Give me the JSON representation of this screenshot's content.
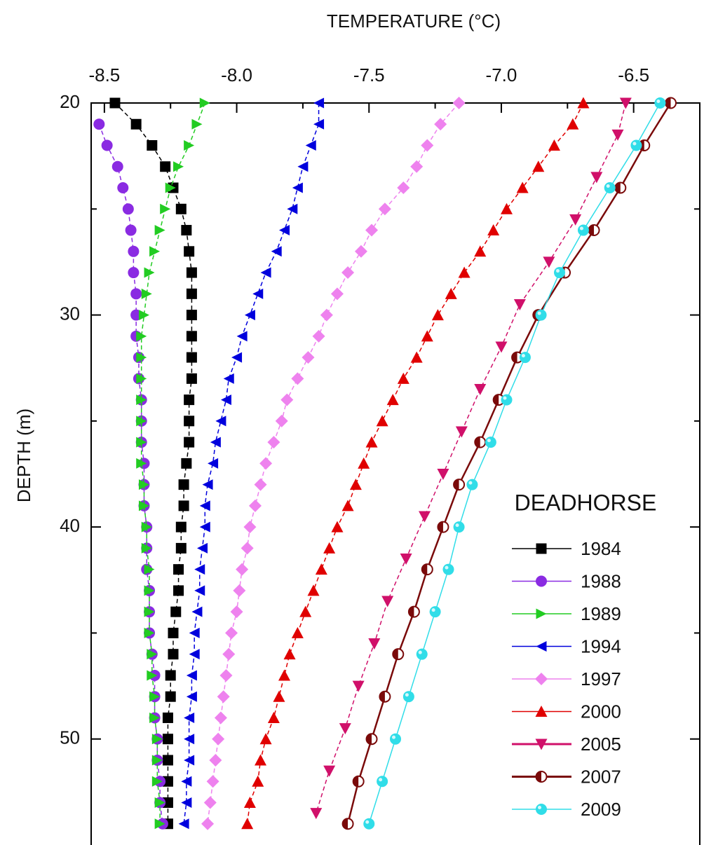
{
  "chart_data": {
    "type": "line",
    "title": "TEMPERATURE (°C)",
    "y_label": "DEPTH (m)",
    "legend_title": "DEADHORSE",
    "xlim": [
      -8.55,
      -6.25
    ],
    "ylim": [
      20,
      55
    ],
    "y_inverted": true,
    "x_axis_position": "top",
    "xticks": [
      -8.5,
      {
        "value": -8,
        "label": "-8.0"
      },
      -7.5,
      {
        "value": -7,
        "label": "-7.0"
      },
      -6.5
    ],
    "xminor": [
      -8.25,
      -7.75,
      -7.25,
      -6.75
    ],
    "yticks": [
      20,
      30,
      40,
      50
    ],
    "yminor": [
      25,
      35,
      45
    ],
    "legend": "lower right",
    "series": [
      {
        "name": "1984",
        "color": "#000000",
        "marker": "square",
        "dash": true,
        "y": [
          20,
          21,
          22,
          23,
          24,
          25,
          26,
          27,
          28,
          29,
          30,
          31,
          32,
          33,
          34,
          35,
          36,
          37,
          38,
          39,
          40,
          41,
          42,
          43,
          44,
          45,
          46,
          47,
          48,
          49,
          50,
          51,
          52,
          53,
          54
        ],
        "values": [
          -8.46,
          -8.38,
          -8.32,
          -8.27,
          -8.24,
          -8.21,
          -8.19,
          -8.18,
          -8.17,
          -8.17,
          -8.17,
          -8.17,
          -8.17,
          -8.17,
          -8.18,
          -8.18,
          -8.18,
          -8.19,
          -8.2,
          -8.2,
          -8.21,
          -8.21,
          -8.22,
          -8.22,
          -8.23,
          -8.24,
          -8.24,
          -8.25,
          -8.25,
          -8.26,
          -8.26,
          -8.26,
          -8.26,
          -8.26,
          -8.26
        ]
      },
      {
        "name": "1988",
        "color": "#8a2be2",
        "marker": "circle",
        "dash": true,
        "y": [
          21,
          22,
          23,
          24,
          25,
          26,
          27,
          28,
          29,
          30,
          31,
          32,
          33,
          34,
          35,
          36,
          37,
          38,
          39,
          40,
          41,
          42,
          43,
          44,
          45,
          46,
          47,
          48,
          49,
          50,
          51,
          52,
          53,
          54
        ],
        "values": [
          -8.52,
          -8.49,
          -8.45,
          -8.43,
          -8.41,
          -8.4,
          -8.39,
          -8.39,
          -8.38,
          -8.38,
          -8.38,
          -8.37,
          -8.37,
          -8.36,
          -8.36,
          -8.36,
          -8.35,
          -8.35,
          -8.35,
          -8.34,
          -8.34,
          -8.34,
          -8.33,
          -8.33,
          -8.33,
          -8.32,
          -8.31,
          -8.31,
          -8.31,
          -8.3,
          -8.3,
          -8.29,
          -8.29,
          -8.28
        ]
      },
      {
        "name": "1989",
        "color": "#22cc22",
        "marker": "tri-right",
        "dash": true,
        "y": [
          20,
          21,
          22,
          23,
          24,
          25,
          26,
          27,
          28,
          29,
          30,
          31,
          32,
          33,
          34,
          35,
          36,
          37,
          38,
          39,
          40,
          41,
          42,
          43,
          44,
          45,
          46,
          47,
          48,
          49,
          50,
          51,
          52,
          53,
          54
        ],
        "values": [
          -8.12,
          -8.15,
          -8.18,
          -8.22,
          -8.25,
          -8.27,
          -8.29,
          -8.31,
          -8.33,
          -8.34,
          -8.35,
          -8.36,
          -8.36,
          -8.36,
          -8.36,
          -8.36,
          -8.36,
          -8.36,
          -8.35,
          -8.35,
          -8.34,
          -8.34,
          -8.33,
          -8.33,
          -8.33,
          -8.33,
          -8.32,
          -8.32,
          -8.31,
          -8.31,
          -8.3,
          -8.3,
          -8.3,
          -8.29,
          -8.29
        ]
      },
      {
        "name": "1994",
        "color": "#0000dd",
        "marker": "tri-left",
        "dash": true,
        "y": [
          20,
          21,
          22,
          23,
          24,
          25,
          26,
          27,
          28,
          29,
          30,
          31,
          32,
          33,
          34,
          35,
          36,
          37,
          38,
          39,
          40,
          41,
          42,
          43,
          44,
          45,
          46,
          47,
          48,
          49,
          50,
          51,
          52,
          53,
          54
        ],
        "values": [
          -7.69,
          -7.69,
          -7.72,
          -7.75,
          -7.77,
          -7.79,
          -7.82,
          -7.85,
          -7.89,
          -7.92,
          -7.95,
          -7.98,
          -8,
          -8.03,
          -8.04,
          -8.06,
          -8.08,
          -8.09,
          -8.11,
          -8.12,
          -8.12,
          -8.13,
          -8.14,
          -8.14,
          -8.15,
          -8.16,
          -8.16,
          -8.17,
          -8.17,
          -8.18,
          -8.18,
          -8.18,
          -8.19,
          -8.19,
          -8.2
        ]
      },
      {
        "name": "1997",
        "color": "#ee82ee",
        "marker": "diamond",
        "dash": true,
        "y": [
          20,
          21,
          22,
          23,
          24,
          25,
          26,
          27,
          28,
          29,
          30,
          31,
          32,
          33,
          34,
          35,
          36,
          37,
          38,
          39,
          40,
          41,
          42,
          43,
          44,
          45,
          46,
          47,
          48,
          49,
          50,
          51,
          52,
          53,
          54
        ],
        "values": [
          -7.16,
          -7.23,
          -7.28,
          -7.32,
          -7.37,
          -7.44,
          -7.49,
          -7.53,
          -7.58,
          -7.62,
          -7.66,
          -7.69,
          -7.73,
          -7.77,
          -7.81,
          -7.83,
          -7.86,
          -7.89,
          -7.91,
          -7.93,
          -7.95,
          -7.96,
          -7.98,
          -7.99,
          -8,
          -8.02,
          -8.03,
          -8.04,
          -8.05,
          -8.06,
          -8.07,
          -8.08,
          -8.09,
          -8.1,
          -8.11
        ]
      },
      {
        "name": "2000",
        "color": "#e00000",
        "marker": "tri-up",
        "dash": true,
        "y": [
          20,
          21,
          22,
          23,
          24,
          25,
          26,
          27,
          28,
          29,
          30,
          31,
          32,
          33,
          34,
          35,
          36,
          37,
          38,
          39,
          40,
          41,
          42,
          43,
          44,
          45,
          46,
          47,
          48,
          49,
          50,
          51,
          52,
          53,
          54
        ],
        "values": [
          -6.69,
          -6.73,
          -6.8,
          -6.86,
          -6.92,
          -6.98,
          -7.03,
          -7.08,
          -7.14,
          -7.19,
          -7.24,
          -7.28,
          -7.32,
          -7.37,
          -7.41,
          -7.45,
          -7.49,
          -7.52,
          -7.55,
          -7.58,
          -7.62,
          -7.65,
          -7.68,
          -7.71,
          -7.74,
          -7.77,
          -7.8,
          -7.82,
          -7.84,
          -7.86,
          -7.89,
          -7.91,
          -7.92,
          -7.95,
          -7.96
        ]
      },
      {
        "name": "2005",
        "color": "#d0106a",
        "marker": "tri-down",
        "dash": true,
        "y": [
          20,
          21.5,
          23.5,
          25.5,
          27.5,
          29.5,
          31.5,
          33.5,
          35.5,
          37.5,
          39.5,
          41.5,
          43.5,
          45.5,
          47.5,
          49.5,
          51.5,
          53.5
        ],
        "values": [
          -6.53,
          -6.56,
          -6.64,
          -6.72,
          -6.82,
          -6.93,
          -7,
          -7.08,
          -7.15,
          -7.22,
          -7.29,
          -7.36,
          -7.43,
          -7.48,
          -7.54,
          -7.59,
          -7.65,
          -7.7
        ]
      },
      {
        "name": "2007",
        "color": "#7a0a0a",
        "marker": "half-circle",
        "dash": false,
        "y": [
          20,
          22,
          24,
          26,
          28,
          30,
          32,
          34,
          36,
          38,
          40,
          42,
          44,
          46,
          48,
          50,
          52,
          54
        ],
        "values": [
          -6.36,
          -6.46,
          -6.55,
          -6.65,
          -6.76,
          -6.86,
          -6.94,
          -7.01,
          -7.08,
          -7.16,
          -7.22,
          -7.28,
          -7.33,
          -7.39,
          -7.44,
          -7.49,
          -7.54,
          -7.58
        ]
      },
      {
        "name": "2009",
        "color": "#30dde8",
        "marker": "ball",
        "dash": false,
        "y": [
          20,
          22,
          24,
          26,
          28,
          30,
          32,
          34,
          36,
          38,
          40,
          42,
          44,
          46,
          48,
          50,
          52,
          54
        ],
        "values": [
          -6.4,
          -6.49,
          -6.59,
          -6.69,
          -6.78,
          -6.85,
          -6.91,
          -6.98,
          -7.04,
          -7.11,
          -7.16,
          -7.2,
          -7.25,
          -7.3,
          -7.35,
          -7.4,
          -7.45,
          -7.5
        ]
      }
    ]
  }
}
